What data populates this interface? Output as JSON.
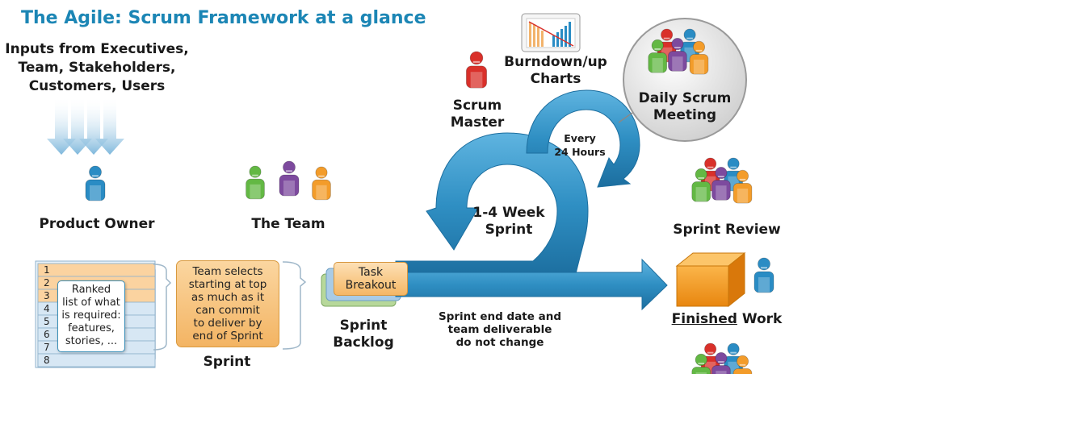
{
  "title": "The Agile: Scrum Framework at a glance",
  "inputs": {
    "line1": "Inputs from Executives,",
    "line2": "Team, Stakeholders,",
    "line3": "Customers, Users"
  },
  "product_owner": {
    "label": "Product Owner"
  },
  "the_team": {
    "label": "The Team"
  },
  "scrum_master": {
    "line1": "Scrum",
    "line2": "Master"
  },
  "burndown": {
    "line1": "Burndown/up",
    "line2": "Charts"
  },
  "daily_scrum": {
    "line1": "Daily Scrum",
    "line2": "Meeting"
  },
  "every": {
    "line1": "Every",
    "line2": "24 Hours"
  },
  "sprint_cycle": {
    "line1": "1-4 Week",
    "line2": "Sprint"
  },
  "sprint_review": {
    "label": "Sprint Review"
  },
  "product_backlog": {
    "rows": [
      "1",
      "2",
      "3",
      "4",
      "5",
      "6",
      "7",
      "8"
    ],
    "note_lines": [
      "Ranked",
      "list of what",
      "is required:",
      "features,",
      "stories, ..."
    ]
  },
  "team_selects": {
    "lines": [
      "Team selects",
      "starting at top",
      "as much as it",
      "can commit",
      "to deliver by",
      "end of Sprint"
    ]
  },
  "sprint_planning": {
    "label": "Sprint"
  },
  "task_breakout": {
    "line1": "Task",
    "line2": "Breakout"
  },
  "sprint_backlog": {
    "line1": "Sprint",
    "line2": "Backlog"
  },
  "sprint_end": {
    "line1": "Sprint end date and",
    "line2": "team deliverable",
    "line3": "do not change"
  },
  "finished_work": {
    "underlined": "Finished",
    "rest": " Work"
  },
  "colors": {
    "title_blue": "#1c86b5",
    "arrow_blue": "#2f8fc3",
    "person_blue": "#2a8cc4",
    "person_green": "#63b844",
    "person_purple": "#7d4a9e",
    "person_orange": "#f39c2a",
    "person_red": "#d9302a",
    "box_orange": "#f5b765"
  }
}
